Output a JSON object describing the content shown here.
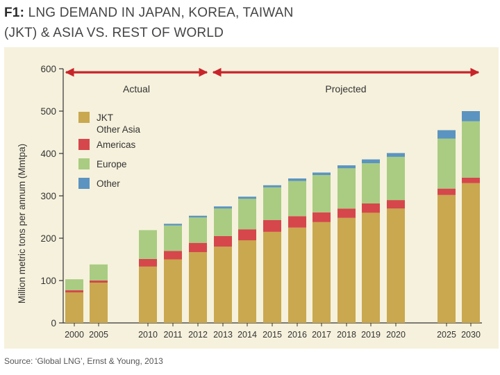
{
  "title": {
    "figure_label": "F1:",
    "line1": "LNG DEMAND IN JAPAN, KOREA, TAIWAN",
    "line2": "(JKT) & ASIA VS. REST OF WORLD"
  },
  "source": "Source: ‘Global LNG’, Ernst & Young, 2013",
  "colors": {
    "background": "#f6f1dc",
    "jkt": "#c9a84f",
    "americas": "#d5474b",
    "europe": "#a9cc82",
    "other": "#5b94c0",
    "arrow": "#c8242a"
  },
  "chart_data": {
    "type": "bar",
    "stacked": true,
    "ylabel": "Million metric tons per annum (Mmtpa)",
    "ylim": [
      0,
      600
    ],
    "yticks": [
      0,
      100,
      200,
      300,
      400,
      500,
      600
    ],
    "grid": false,
    "legend_position": "top-left",
    "categories": [
      "2000",
      "2005",
      "2010",
      "2011",
      "2012",
      "2013",
      "2014",
      "2015",
      "2016",
      "2017",
      "2018",
      "2019",
      "2020",
      "2025",
      "2030"
    ],
    "legend": [
      {
        "label": "JKT",
        "label_line2": "Other Asia",
        "color": "#c9a84f"
      },
      {
        "label": "Americas",
        "color": "#d5474b"
      },
      {
        "label": "Europe",
        "color": "#a9cc82"
      },
      {
        "label": "Other",
        "color": "#5b94c0"
      }
    ],
    "series": [
      {
        "name": "JKT Other Asia",
        "color": "#c9a84f",
        "values": [
          72,
          95,
          133,
          150,
          167,
          180,
          195,
          215,
          225,
          238,
          248,
          260,
          270,
          302,
          330
        ]
      },
      {
        "name": "Americas",
        "color": "#d5474b",
        "values": [
          5,
          5,
          18,
          20,
          22,
          25,
          26,
          28,
          27,
          23,
          22,
          22,
          20,
          15,
          13
        ]
      },
      {
        "name": "Europe",
        "color": "#a9cc82",
        "values": [
          26,
          38,
          68,
          60,
          60,
          65,
          72,
          77,
          83,
          88,
          95,
          95,
          102,
          118,
          133
        ]
      },
      {
        "name": "Other",
        "color": "#5b94c0",
        "values": [
          0,
          0,
          0,
          4,
          4,
          5,
          5,
          5,
          6,
          6,
          7,
          9,
          9,
          20,
          24
        ]
      }
    ],
    "annotations": [
      {
        "text": "Actual",
        "from": "2000",
        "to": "2012",
        "value": 590
      },
      {
        "text": "Projected",
        "from": "2013",
        "to": "2030",
        "value": 590
      }
    ]
  }
}
